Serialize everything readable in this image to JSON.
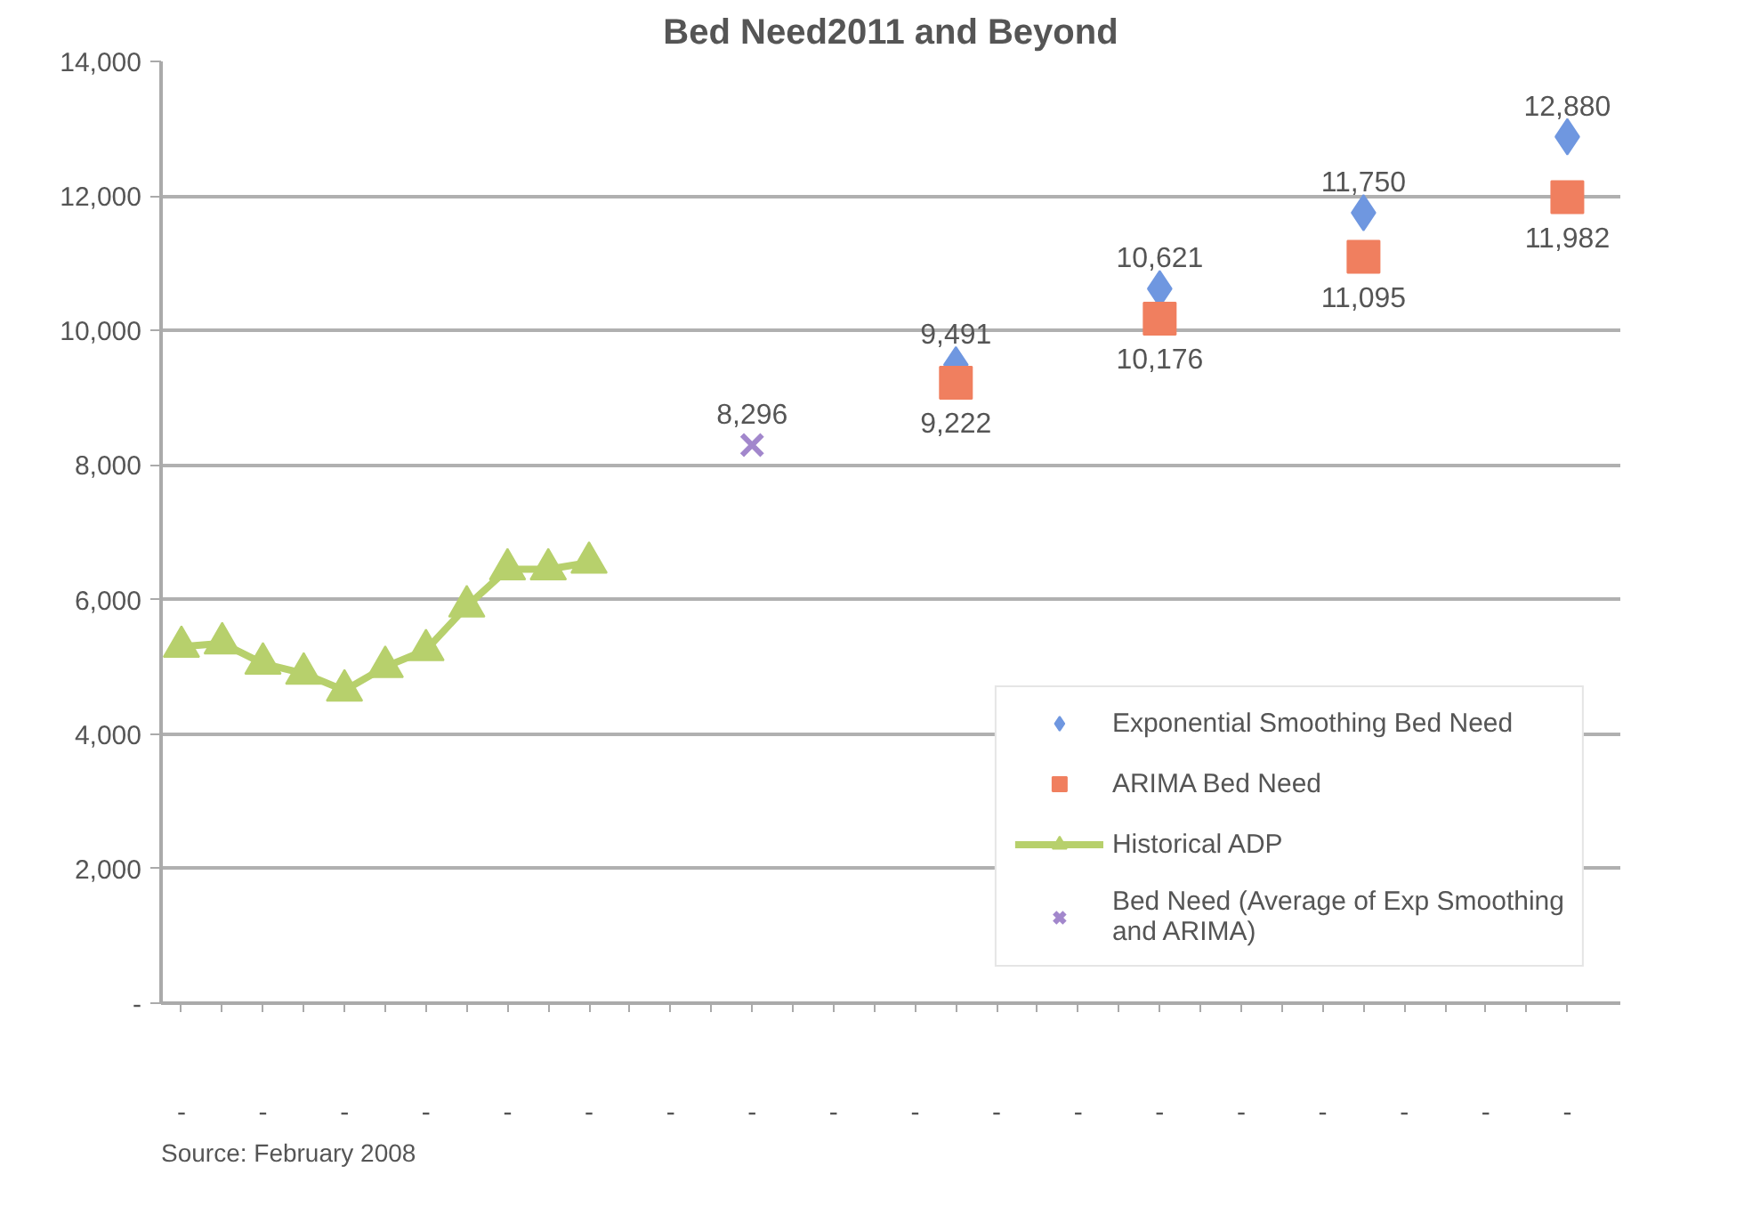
{
  "chart_data": {
    "type": "line",
    "title": "Bed Need2011 and Beyond",
    "categories": [
      "-",
      null,
      "-",
      null,
      "-",
      null,
      "-",
      null,
      "-",
      null,
      "-",
      null,
      "-",
      null,
      "-",
      null,
      "-",
      null,
      "-",
      null,
      "-",
      null,
      "-",
      null,
      "-",
      null,
      "-",
      null,
      "-",
      null,
      "-",
      null,
      "-",
      null,
      "-"
    ],
    "series": [
      {
        "name": "Exponential Smoothing Bed Need",
        "type": "scatter",
        "marker": "diamond",
        "color": "#6f97e0",
        "values": [
          null,
          null,
          null,
          null,
          null,
          null,
          null,
          null,
          null,
          null,
          null,
          null,
          null,
          null,
          null,
          null,
          null,
          null,
          null,
          9491,
          null,
          null,
          null,
          null,
          10621,
          null,
          null,
          null,
          null,
          11750,
          null,
          null,
          null,
          null,
          12880
        ],
        "value_labels": [
          null,
          null,
          null,
          null,
          null,
          null,
          null,
          null,
          null,
          null,
          null,
          null,
          null,
          null,
          null,
          null,
          null,
          null,
          null,
          "9,491",
          null,
          null,
          null,
          null,
          "10,621",
          null,
          null,
          null,
          null,
          "11,750",
          null,
          null,
          null,
          null,
          "12,880"
        ]
      },
      {
        "name": "ARIMA Bed Need",
        "type": "scatter",
        "marker": "square",
        "color": "#f07f5f",
        "values": [
          null,
          null,
          null,
          null,
          null,
          null,
          null,
          null,
          null,
          null,
          null,
          null,
          null,
          null,
          null,
          null,
          null,
          null,
          null,
          9222,
          null,
          null,
          null,
          null,
          10176,
          null,
          null,
          null,
          null,
          11095,
          null,
          null,
          null,
          null,
          11982
        ],
        "value_labels": [
          null,
          null,
          null,
          null,
          null,
          null,
          null,
          null,
          null,
          null,
          null,
          null,
          null,
          null,
          null,
          null,
          null,
          null,
          null,
          "9,222",
          null,
          null,
          null,
          null,
          "10,176",
          null,
          null,
          null,
          null,
          "11,095",
          null,
          null,
          null,
          null,
          "11,982"
        ]
      },
      {
        "name": "Historical ADP",
        "marker": "triangle",
        "color": "#b7d06c",
        "values": [
          5300,
          5350,
          5050,
          4900,
          4650,
          5000,
          5250,
          5900,
          6450,
          6450,
          6550,
          null,
          null,
          null,
          null,
          null,
          null,
          null,
          null,
          null,
          null,
          null,
          null,
          null,
          null,
          null,
          null,
          null,
          null,
          null,
          null,
          null,
          null,
          null,
          null
        ]
      },
      {
        "name": "Bed Need (Average of Exp Smoothing and ARIMA)",
        "type": "scatter",
        "marker": "cross",
        "color": "#a287cc",
        "values": [
          null,
          null,
          null,
          null,
          null,
          null,
          null,
          null,
          null,
          null,
          null,
          null,
          null,
          null,
          8296,
          null,
          null,
          null,
          null,
          null,
          null,
          null,
          null,
          null,
          null,
          null,
          null,
          null,
          null,
          null,
          null,
          null,
          null,
          null,
          null
        ],
        "value_labels": [
          null,
          null,
          null,
          null,
          null,
          null,
          null,
          null,
          null,
          null,
          null,
          null,
          null,
          null,
          "8,296",
          null,
          null,
          null,
          null,
          null,
          null,
          null,
          null,
          null,
          null,
          null,
          null,
          null,
          null,
          null,
          null,
          null,
          null,
          null,
          null
        ]
      }
    ],
    "ylim": [
      0,
      14000
    ],
    "yticks": [
      {
        "value": 0,
        "label": "-"
      },
      {
        "value": 2000,
        "label": "2,000"
      },
      {
        "value": 4000,
        "label": "4,000"
      },
      {
        "value": 6000,
        "label": "6,000"
      },
      {
        "value": 8000,
        "label": "8,000"
      },
      {
        "value": 10000,
        "label": "10,000"
      },
      {
        "value": 12000,
        "label": "12,000"
      },
      {
        "value": 14000,
        "label": "14,000"
      }
    ],
    "grid": "y",
    "legend": "right",
    "annotations": [
      "Source: February 2008"
    ]
  }
}
